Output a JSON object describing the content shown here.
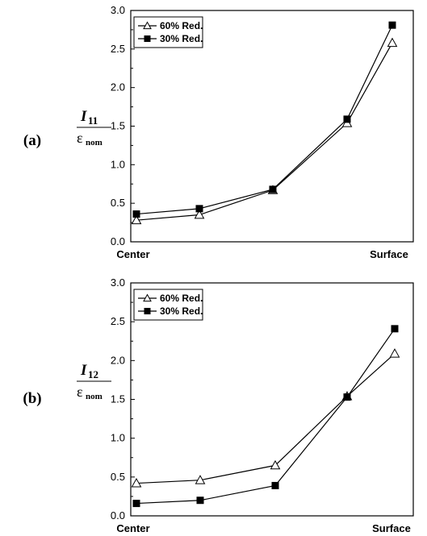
{
  "chart_data": [
    {
      "type": "line",
      "panel_label": "(a)",
      "ylabel_main": "I",
      "ylabel_sub": "11",
      "ylabel_den": "ε",
      "ylabel_den_sub": "nom",
      "categories": [
        "Center",
        "",
        "",
        "",
        "Surface"
      ],
      "xtick_labels": [
        "Center",
        "Surface"
      ],
      "ylim": [
        0,
        3.0
      ],
      "yticks": [
        "0.0",
        "0.5",
        "1.0",
        "1.5",
        "2.0",
        "2.5",
        "3.0"
      ],
      "legend_position": "top-left",
      "series": [
        {
          "name": "60% Red.",
          "marker": "triangle-open",
          "values": [
            0.28,
            0.35,
            0.67,
            1.54,
            2.58
          ]
        },
        {
          "name": "30% Red.",
          "marker": "square-filled",
          "values": [
            0.36,
            0.43,
            0.68,
            1.59,
            2.81
          ]
        }
      ]
    },
    {
      "type": "line",
      "panel_label": "(b)",
      "ylabel_main": "I",
      "ylabel_sub": "12",
      "ylabel_den": "ε",
      "ylabel_den_sub": "nom",
      "categories": [
        "Center",
        "",
        "",
        "",
        "Surface"
      ],
      "xtick_labels": [
        "Center",
        "Surface"
      ],
      "ylim": [
        0,
        3.0
      ],
      "yticks": [
        "0.0",
        "0.5",
        "1.0",
        "1.5",
        "2.0",
        "2.5",
        "3.0"
      ],
      "legend_position": "top-left",
      "series": [
        {
          "name": "60% Red.",
          "marker": "triangle-open",
          "values": [
            0.42,
            0.46,
            0.65,
            1.54,
            2.09
          ]
        },
        {
          "name": "30% Red.",
          "marker": "square-filled",
          "values": [
            0.16,
            0.2,
            0.39,
            1.53,
            2.41
          ]
        }
      ]
    }
  ]
}
